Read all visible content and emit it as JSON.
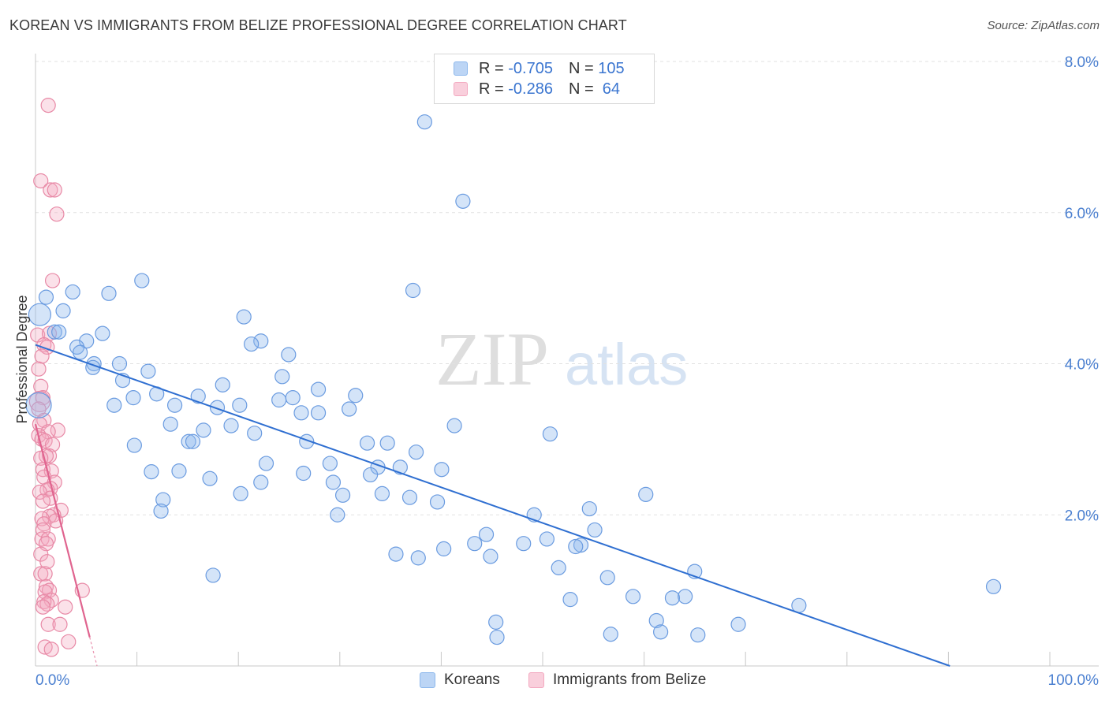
{
  "title": "KOREAN VS IMMIGRANTS FROM BELIZE PROFESSIONAL DEGREE CORRELATION CHART",
  "source": "Source: ZipAtlas.com",
  "watermark": {
    "zip": "ZIP",
    "atlas": "atlas"
  },
  "legend": {
    "rows": [
      {
        "r_label": "R = ",
        "r_value": "-0.705",
        "n_label": "N = ",
        "n_value": "105",
        "color": "#8db8ec"
      },
      {
        "r_label": "R = ",
        "r_value": "-0.286",
        "n_label": "N = ",
        "n_value": " 64",
        "color": "#f3a9c0"
      }
    ]
  },
  "bottom_legend": [
    "Koreans",
    "Immigrants from Belize"
  ],
  "chart_data": {
    "type": "scatter",
    "ylabel": "Professional Degree",
    "xlim": [
      0,
      100
    ],
    "ylim": [
      0,
      8.0
    ],
    "x_tick_labels": {
      "min": "0.0%",
      "max": "100.0%"
    },
    "y_ticks": [
      {
        "value": 2,
        "label": "2.0%"
      },
      {
        "value": 4,
        "label": "4.0%"
      },
      {
        "value": 6,
        "label": "6.0%"
      },
      {
        "value": 8,
        "label": "8.0%"
      }
    ],
    "grid": true,
    "colors": {
      "koreans": "#8db8ec",
      "koreans_stroke": "#6a9be0",
      "koreans_line": "#2f6fd1",
      "belize": "#f3a9c0",
      "belize_stroke": "#e889a6",
      "belize_line": "#e0648f"
    },
    "series": [
      {
        "name": "Koreans",
        "trend": {
          "x0": 0,
          "y0": 4.25,
          "x1": 86,
          "y1": 0
        },
        "points": [
          [
            36.6,
            7.2
          ],
          [
            40.2,
            6.15
          ],
          [
            10.0,
            5.1
          ],
          [
            35.5,
            4.97
          ],
          [
            3.5,
            4.95
          ],
          [
            6.9,
            4.93
          ],
          [
            1.0,
            4.88
          ],
          [
            2.6,
            4.7
          ],
          [
            19.6,
            4.62
          ],
          [
            0.4,
            4.65
          ],
          [
            1.8,
            4.42
          ],
          [
            6.3,
            4.4
          ],
          [
            2.2,
            4.42
          ],
          [
            21.2,
            4.3
          ],
          [
            4.8,
            4.3
          ],
          [
            20.3,
            4.26
          ],
          [
            3.9,
            4.22
          ],
          [
            4.2,
            4.15
          ],
          [
            23.8,
            4.12
          ],
          [
            5.5,
            4.0
          ],
          [
            7.9,
            4.0
          ],
          [
            5.4,
            3.95
          ],
          [
            10.6,
            3.9
          ],
          [
            23.2,
            3.83
          ],
          [
            8.2,
            3.78
          ],
          [
            17.6,
            3.72
          ],
          [
            26.6,
            3.66
          ],
          [
            11.4,
            3.6
          ],
          [
            9.2,
            3.55
          ],
          [
            15.3,
            3.57
          ],
          [
            30.1,
            3.58
          ],
          [
            24.2,
            3.55
          ],
          [
            22.9,
            3.52
          ],
          [
            29.5,
            3.4
          ],
          [
            0.3,
            3.45
          ],
          [
            7.4,
            3.45
          ],
          [
            13.1,
            3.45
          ],
          [
            19.2,
            3.45
          ],
          [
            17.1,
            3.42
          ],
          [
            25.0,
            3.35
          ],
          [
            26.6,
            3.35
          ],
          [
            12.7,
            3.2
          ],
          [
            18.4,
            3.18
          ],
          [
            15.8,
            3.12
          ],
          [
            39.4,
            3.18
          ],
          [
            20.6,
            3.08
          ],
          [
            48.4,
            3.07
          ],
          [
            25.5,
            2.97
          ],
          [
            14.4,
            2.97
          ],
          [
            14.8,
            2.97
          ],
          [
            31.2,
            2.95
          ],
          [
            33.1,
            2.95
          ],
          [
            9.3,
            2.92
          ],
          [
            35.8,
            2.83
          ],
          [
            21.7,
            2.68
          ],
          [
            27.7,
            2.68
          ],
          [
            32.2,
            2.63
          ],
          [
            34.3,
            2.63
          ],
          [
            38.2,
            2.6
          ],
          [
            10.9,
            2.57
          ],
          [
            13.5,
            2.58
          ],
          [
            25.2,
            2.55
          ],
          [
            31.5,
            2.53
          ],
          [
            16.4,
            2.48
          ],
          [
            21.2,
            2.43
          ],
          [
            28.0,
            2.43
          ],
          [
            19.3,
            2.28
          ],
          [
            28.9,
            2.26
          ],
          [
            32.6,
            2.28
          ],
          [
            35.2,
            2.23
          ],
          [
            57.4,
            2.27
          ],
          [
            12.0,
            2.2
          ],
          [
            37.8,
            2.17
          ],
          [
            52.1,
            2.08
          ],
          [
            11.8,
            2.05
          ],
          [
            28.4,
            2.0
          ],
          [
            46.9,
            2.0
          ],
          [
            52.6,
            1.8
          ],
          [
            42.4,
            1.74
          ],
          [
            41.3,
            1.62
          ],
          [
            45.9,
            1.62
          ],
          [
            48.1,
            1.68
          ],
          [
            51.3,
            1.6
          ],
          [
            50.8,
            1.58
          ],
          [
            38.4,
            1.55
          ],
          [
            33.9,
            1.48
          ],
          [
            36.0,
            1.43
          ],
          [
            42.8,
            1.45
          ],
          [
            49.2,
            1.3
          ],
          [
            62.0,
            1.25
          ],
          [
            16.7,
            1.2
          ],
          [
            53.8,
            1.17
          ],
          [
            90.1,
            1.05
          ],
          [
            56.2,
            0.92
          ],
          [
            61.1,
            0.92
          ],
          [
            50.3,
            0.88
          ],
          [
            59.9,
            0.9
          ],
          [
            71.8,
            0.8
          ],
          [
            58.4,
            0.6
          ],
          [
            43.3,
            0.58
          ],
          [
            66.1,
            0.55
          ],
          [
            58.8,
            0.45
          ],
          [
            54.1,
            0.42
          ],
          [
            62.3,
            0.41
          ],
          [
            43.4,
            0.38
          ]
        ]
      },
      {
        "name": "Immigrants from Belize",
        "trend": {
          "x0": 0,
          "y0": 3.2,
          "x1": 5.1,
          "y1": 0.38
        },
        "points": [
          [
            1.2,
            7.42
          ],
          [
            0.5,
            6.42
          ],
          [
            1.4,
            6.3
          ],
          [
            1.8,
            6.3
          ],
          [
            2.0,
            5.98
          ],
          [
            1.6,
            5.1
          ],
          [
            0.2,
            4.38
          ],
          [
            1.3,
            4.4
          ],
          [
            0.8,
            4.25
          ],
          [
            1.1,
            4.22
          ],
          [
            0.6,
            4.1
          ],
          [
            0.3,
            3.93
          ],
          [
            0.5,
            3.7
          ],
          [
            0.7,
            3.55
          ],
          [
            0.4,
            3.5
          ],
          [
            0.3,
            3.4
          ],
          [
            0.8,
            3.25
          ],
          [
            0.4,
            3.2
          ],
          [
            2.1,
            3.12
          ],
          [
            1.2,
            3.1
          ],
          [
            0.3,
            3.05
          ],
          [
            0.6,
            3.0
          ],
          [
            0.9,
            2.98
          ],
          [
            1.6,
            2.93
          ],
          [
            1.3,
            2.78
          ],
          [
            1.0,
            2.78
          ],
          [
            0.5,
            2.75
          ],
          [
            0.7,
            2.6
          ],
          [
            1.5,
            2.58
          ],
          [
            0.8,
            2.5
          ],
          [
            1.8,
            2.43
          ],
          [
            1.4,
            2.35
          ],
          [
            1.1,
            2.33
          ],
          [
            0.4,
            2.3
          ],
          [
            1.4,
            2.22
          ],
          [
            0.7,
            2.18
          ],
          [
            2.4,
            2.06
          ],
          [
            1.7,
            2.0
          ],
          [
            1.3,
            1.98
          ],
          [
            0.6,
            1.95
          ],
          [
            1.9,
            1.92
          ],
          [
            0.8,
            1.88
          ],
          [
            0.7,
            1.8
          ],
          [
            0.6,
            1.68
          ],
          [
            1.2,
            1.68
          ],
          [
            1.0,
            1.62
          ],
          [
            0.5,
            1.48
          ],
          [
            1.1,
            1.38
          ],
          [
            0.5,
            1.22
          ],
          [
            0.9,
            1.22
          ],
          [
            1.0,
            1.05
          ],
          [
            1.3,
            1.0
          ],
          [
            0.9,
            0.98
          ],
          [
            4.4,
            1.0
          ],
          [
            1.5,
            0.87
          ],
          [
            0.8,
            0.85
          ],
          [
            1.1,
            0.82
          ],
          [
            2.8,
            0.78
          ],
          [
            0.7,
            0.78
          ],
          [
            1.2,
            0.55
          ],
          [
            2.3,
            0.55
          ],
          [
            3.1,
            0.32
          ],
          [
            0.9,
            0.25
          ],
          [
            1.5,
            0.22
          ]
        ]
      }
    ]
  }
}
